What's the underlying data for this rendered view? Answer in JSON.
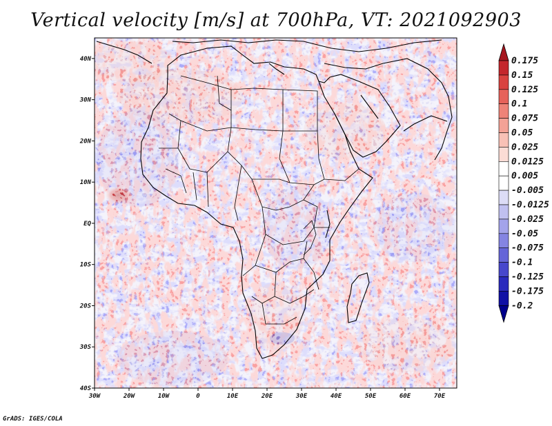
{
  "title": "Vertical velocity [m/s] at 700hPa, VT: 2021092903",
  "credit": "GrADS: IGES/COLA",
  "lon_ticks": [
    "30W",
    "20W",
    "10W",
    "0",
    "10E",
    "20E",
    "30E",
    "40E",
    "50E",
    "60E",
    "70E"
  ],
  "lat_ticks": [
    "40N",
    "30N",
    "20N",
    "10N",
    "EQ",
    "10S",
    "20S",
    "30S",
    "40S"
  ],
  "map_extent": {
    "lon": [
      -30,
      75
    ],
    "lat": [
      -40,
      45
    ]
  },
  "colorbar": {
    "labels": [
      "0.175",
      "0.15",
      "0.125",
      "0.1",
      "0.075",
      "0.05",
      "0.025",
      "0.0125",
      "0.005",
      "-0.005",
      "-0.0125",
      "-0.025",
      "-0.05",
      "-0.075",
      "-0.1",
      "-0.125",
      "-0.175",
      "-0.2"
    ],
    "colors": [
      "#a6161e",
      "#c4262c",
      "#d9423f",
      "#e6625a",
      "#ee8378",
      "#f3a296",
      "#f8c1b6",
      "#fbdcd5",
      "#ffffff",
      "#ffffff",
      "#dcdcf6",
      "#c0c0f0",
      "#a3a3ea",
      "#8484e2",
      "#6565d8",
      "#4747cc",
      "#2a2abd",
      "#1010a5",
      "#00008c"
    ]
  }
}
